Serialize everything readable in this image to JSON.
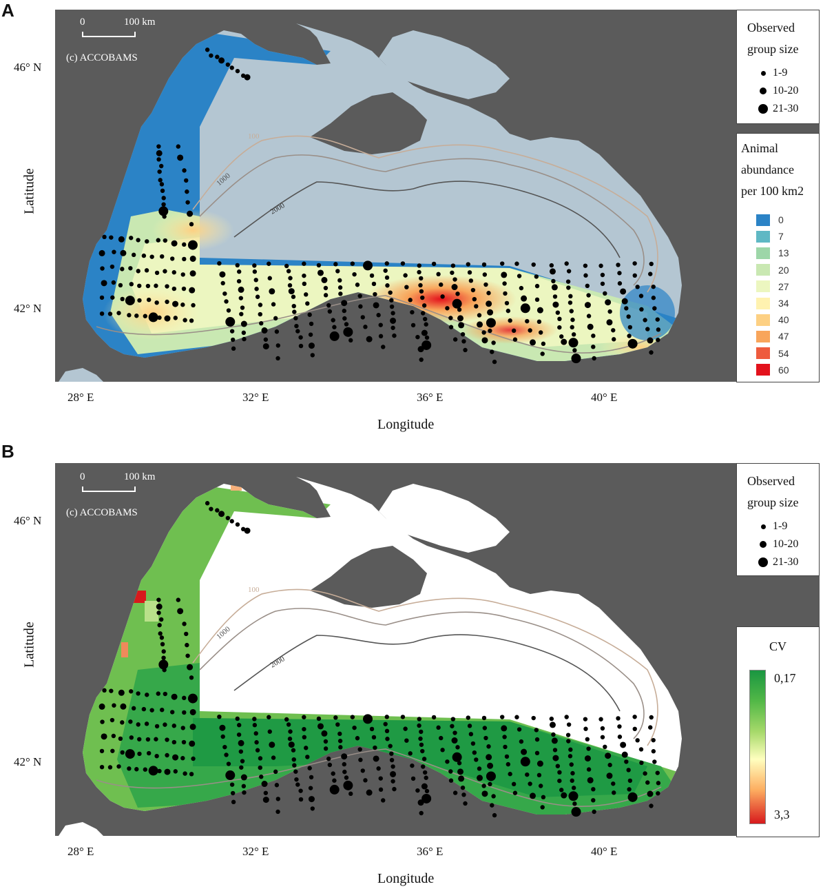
{
  "panel_a": {
    "letter": "A",
    "scale": {
      "zero": "0",
      "distance": "100 km",
      "credit": "(c) ACCOBAMS"
    },
    "lat_ticks": [
      "46° N",
      "42° N"
    ],
    "lon_ticks": [
      "28° E",
      "32° E",
      "36° E",
      "40° E"
    ],
    "xlabel": "Longitude",
    "ylabel": "Latitude",
    "contours": [
      "100",
      "1000",
      "2000"
    ],
    "group_legend": {
      "title_line1": "Observed",
      "title_line2": "group size",
      "items": [
        "1-9",
        "10-20",
        "21-30"
      ]
    },
    "abundance_legend": {
      "title_line1": "Animal",
      "title_line2": "abundance",
      "title_line3": "per 100 km2",
      "items": [
        {
          "label": "0",
          "color": "#2b83c6"
        },
        {
          "label": "7",
          "color": "#5fb8c4"
        },
        {
          "label": "13",
          "color": "#9dd6a8"
        },
        {
          "label": "20",
          "color": "#c9e8b2"
        },
        {
          "label": "27",
          "color": "#ecf6c0"
        },
        {
          "label": "34",
          "color": "#fff2b0"
        },
        {
          "label": "40",
          "color": "#fdd083"
        },
        {
          "label": "47",
          "color": "#f8a55b"
        },
        {
          "label": "54",
          "color": "#ee5b3d"
        },
        {
          "label": "60",
          "color": "#e3121c"
        }
      ]
    }
  },
  "panel_b": {
    "letter": "B",
    "scale": {
      "zero": "0",
      "distance": "100 km",
      "credit": "(c) ACCOBAMS"
    },
    "lat_ticks": [
      "46° N",
      "42° N"
    ],
    "lon_ticks": [
      "28° E",
      "32° E",
      "36° E",
      "40° E"
    ],
    "xlabel": "Longitude",
    "ylabel": "Latitude",
    "contours": [
      "100",
      "1000",
      "2000"
    ],
    "group_legend": {
      "title_line1": "Observed",
      "title_line2": "group size",
      "items": [
        "1-9",
        "10-20",
        "21-30"
      ]
    },
    "cv_legend": {
      "title": "CV",
      "max_label": "0,17",
      "min_label": "3,3"
    }
  }
}
